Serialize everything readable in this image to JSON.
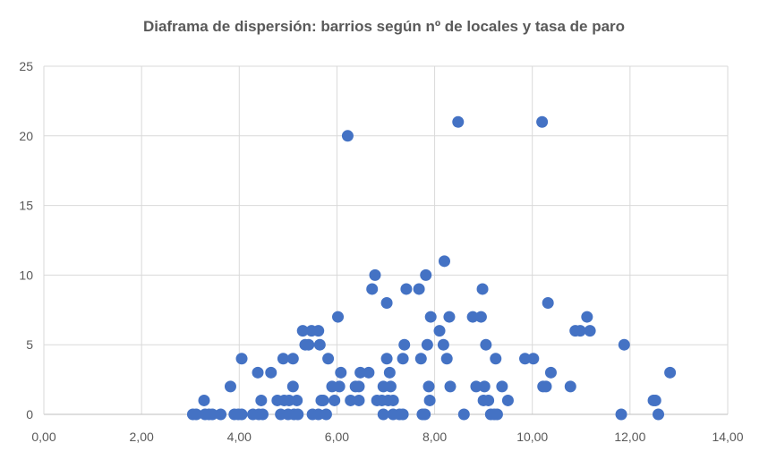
{
  "chart_data": {
    "type": "scatter",
    "title": "Diaframa de dispersión: barrios según nº de locales y tasa de paro",
    "xlabel": "",
    "ylabel": "",
    "xlim": [
      0,
      14
    ],
    "ylim": [
      0,
      25
    ],
    "xticks": [
      "0,00",
      "2,00",
      "4,00",
      "6,00",
      "8,00",
      "10,00",
      "12,00",
      "14,00"
    ],
    "yticks": [
      "0",
      "5",
      "10",
      "15",
      "20",
      "25"
    ],
    "grid": true,
    "legend": "none",
    "marker_color": "#4472C4",
    "series": [
      {
        "points": [
          [
            3.05,
            0
          ],
          [
            3.12,
            0
          ],
          [
            3.28,
            1
          ],
          [
            3.3,
            0
          ],
          [
            3.38,
            0
          ],
          [
            3.45,
            0
          ],
          [
            3.62,
            0
          ],
          [
            3.82,
            2
          ],
          [
            3.9,
            0
          ],
          [
            3.98,
            0
          ],
          [
            4.05,
            4
          ],
          [
            4.05,
            0
          ],
          [
            4.28,
            0
          ],
          [
            4.38,
            3
          ],
          [
            4.4,
            0
          ],
          [
            4.45,
            1
          ],
          [
            4.48,
            0
          ],
          [
            4.65,
            3
          ],
          [
            4.78,
            1
          ],
          [
            4.85,
            0
          ],
          [
            4.9,
            4
          ],
          [
            4.92,
            1
          ],
          [
            5.0,
            0
          ],
          [
            5.02,
            1
          ],
          [
            5.1,
            4
          ],
          [
            5.1,
            2
          ],
          [
            5.12,
            0
          ],
          [
            5.18,
            1
          ],
          [
            5.2,
            0
          ],
          [
            5.3,
            6
          ],
          [
            5.35,
            5
          ],
          [
            5.42,
            5
          ],
          [
            5.48,
            6
          ],
          [
            5.5,
            0
          ],
          [
            5.62,
            6
          ],
          [
            5.62,
            0
          ],
          [
            5.65,
            5
          ],
          [
            5.68,
            1
          ],
          [
            5.72,
            1
          ],
          [
            5.78,
            0
          ],
          [
            5.82,
            4
          ],
          [
            5.9,
            2
          ],
          [
            5.95,
            1
          ],
          [
            6.02,
            7
          ],
          [
            6.05,
            2
          ],
          [
            6.08,
            3
          ],
          [
            6.22,
            20
          ],
          [
            6.28,
            1
          ],
          [
            6.38,
            2
          ],
          [
            6.45,
            2
          ],
          [
            6.45,
            1
          ],
          [
            6.48,
            3
          ],
          [
            6.65,
            3
          ],
          [
            6.72,
            9
          ],
          [
            6.78,
            10
          ],
          [
            6.82,
            1
          ],
          [
            6.92,
            1
          ],
          [
            6.95,
            0
          ],
          [
            6.95,
            2
          ],
          [
            7.02,
            8
          ],
          [
            7.02,
            4
          ],
          [
            7.05,
            1
          ],
          [
            7.08,
            3
          ],
          [
            7.1,
            2
          ],
          [
            7.15,
            1
          ],
          [
            7.15,
            0
          ],
          [
            7.28,
            0
          ],
          [
            7.35,
            4
          ],
          [
            7.35,
            0
          ],
          [
            7.38,
            5
          ],
          [
            7.42,
            9
          ],
          [
            7.68,
            9
          ],
          [
            7.72,
            4
          ],
          [
            7.75,
            0
          ],
          [
            7.8,
            0
          ],
          [
            7.82,
            10
          ],
          [
            7.85,
            5
          ],
          [
            7.88,
            2
          ],
          [
            7.9,
            1
          ],
          [
            7.92,
            7
          ],
          [
            8.1,
            6
          ],
          [
            8.18,
            5
          ],
          [
            8.2,
            11
          ],
          [
            8.25,
            4
          ],
          [
            8.3,
            7
          ],
          [
            8.32,
            2
          ],
          [
            8.48,
            21
          ],
          [
            8.6,
            0
          ],
          [
            8.78,
            7
          ],
          [
            8.85,
            2
          ],
          [
            8.95,
            7
          ],
          [
            8.98,
            9
          ],
          [
            9.0,
            1
          ],
          [
            9.02,
            2
          ],
          [
            9.05,
            5
          ],
          [
            9.1,
            1
          ],
          [
            9.15,
            0
          ],
          [
            9.22,
            0
          ],
          [
            9.25,
            4
          ],
          [
            9.28,
            0
          ],
          [
            9.38,
            2
          ],
          [
            9.5,
            1
          ],
          [
            9.85,
            4
          ],
          [
            10.02,
            4
          ],
          [
            10.2,
            21
          ],
          [
            10.22,
            2
          ],
          [
            10.28,
            2
          ],
          [
            10.32,
            8
          ],
          [
            10.38,
            3
          ],
          [
            10.78,
            2
          ],
          [
            10.88,
            6
          ],
          [
            10.98,
            6
          ],
          [
            11.12,
            7
          ],
          [
            11.18,
            6
          ],
          [
            11.82,
            0
          ],
          [
            11.88,
            5
          ],
          [
            12.48,
            1
          ],
          [
            12.52,
            1
          ],
          [
            12.58,
            0
          ],
          [
            12.82,
            3
          ]
        ]
      }
    ]
  }
}
